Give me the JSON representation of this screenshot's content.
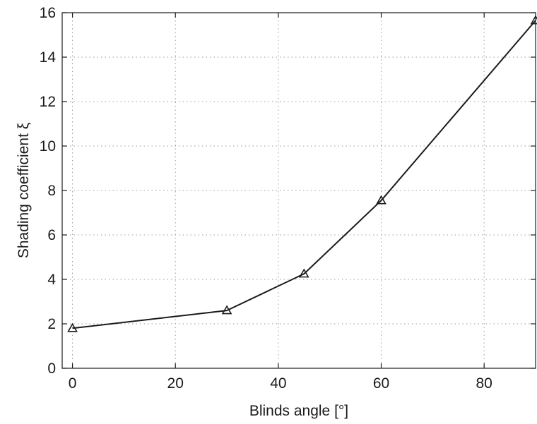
{
  "chart_data": {
    "type": "line",
    "xlabel": "Blinds angle [°]",
    "ylabel": "Shading coefficient ξ",
    "xlim": [
      -2,
      90
    ],
    "ylim": [
      0,
      16
    ],
    "x_ticks": [
      0,
      20,
      40,
      60,
      80
    ],
    "y_ticks": [
      0,
      2,
      4,
      6,
      8,
      10,
      12,
      14,
      16
    ],
    "grid": true,
    "marker": "triangle",
    "colors": {
      "line": "#1a1a1a",
      "grid": "#9a9a9a",
      "axes": "#1a1a1a"
    },
    "series": [
      {
        "x": [
          0,
          30,
          45,
          60,
          90
        ],
        "y": [
          1.8,
          2.6,
          4.25,
          7.55,
          15.65
        ]
      }
    ]
  }
}
